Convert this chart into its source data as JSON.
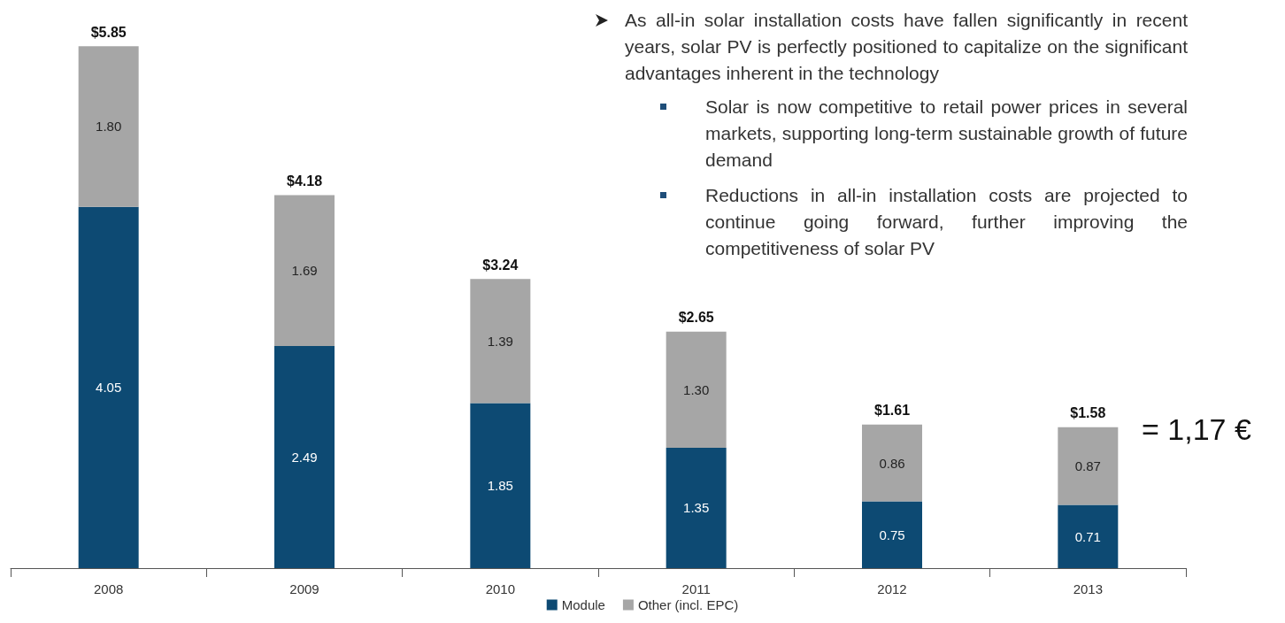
{
  "chart_data": {
    "type": "bar",
    "stacked": true,
    "tick_labels": "x",
    "grid": false,
    "legend": "bottom",
    "categories": [
      "2008",
      "2009",
      "2010",
      "2011",
      "2012",
      "2013"
    ],
    "series": [
      {
        "name": "Module",
        "color": "#0d4a73",
        "values": [
          4.05,
          2.49,
          1.85,
          1.35,
          0.75,
          0.71
        ],
        "value_labels": [
          "4.05",
          "2.49",
          "1.85",
          "1.35",
          "0.75",
          "0.71"
        ]
      },
      {
        "name": "Other (incl. EPC)",
        "color": "#a6a6a6",
        "values": [
          1.8,
          1.69,
          1.39,
          1.3,
          0.86,
          0.87
        ],
        "value_labels": [
          "1.80",
          "1.69",
          "1.39",
          "1.30",
          "0.86",
          "0.87"
        ]
      }
    ],
    "totals": [
      "$5.85",
      "$4.18",
      "$3.24",
      "$2.65",
      "$1.61",
      "$1.58"
    ],
    "annotations": [
      "As all-in solar installation costs have fallen significantly in recent years, solar PV is perfectly positioned to capitalize on the significant advantages inherent in the technology",
      "Solar is now competitive to retail power prices in several markets, supporting long-term sustainable growth of future demand",
      "Reductions in all-in installation costs are projected to continue going forward, further improving the competitiveness of solar PV",
      "= 1,17 €"
    ]
  }
}
